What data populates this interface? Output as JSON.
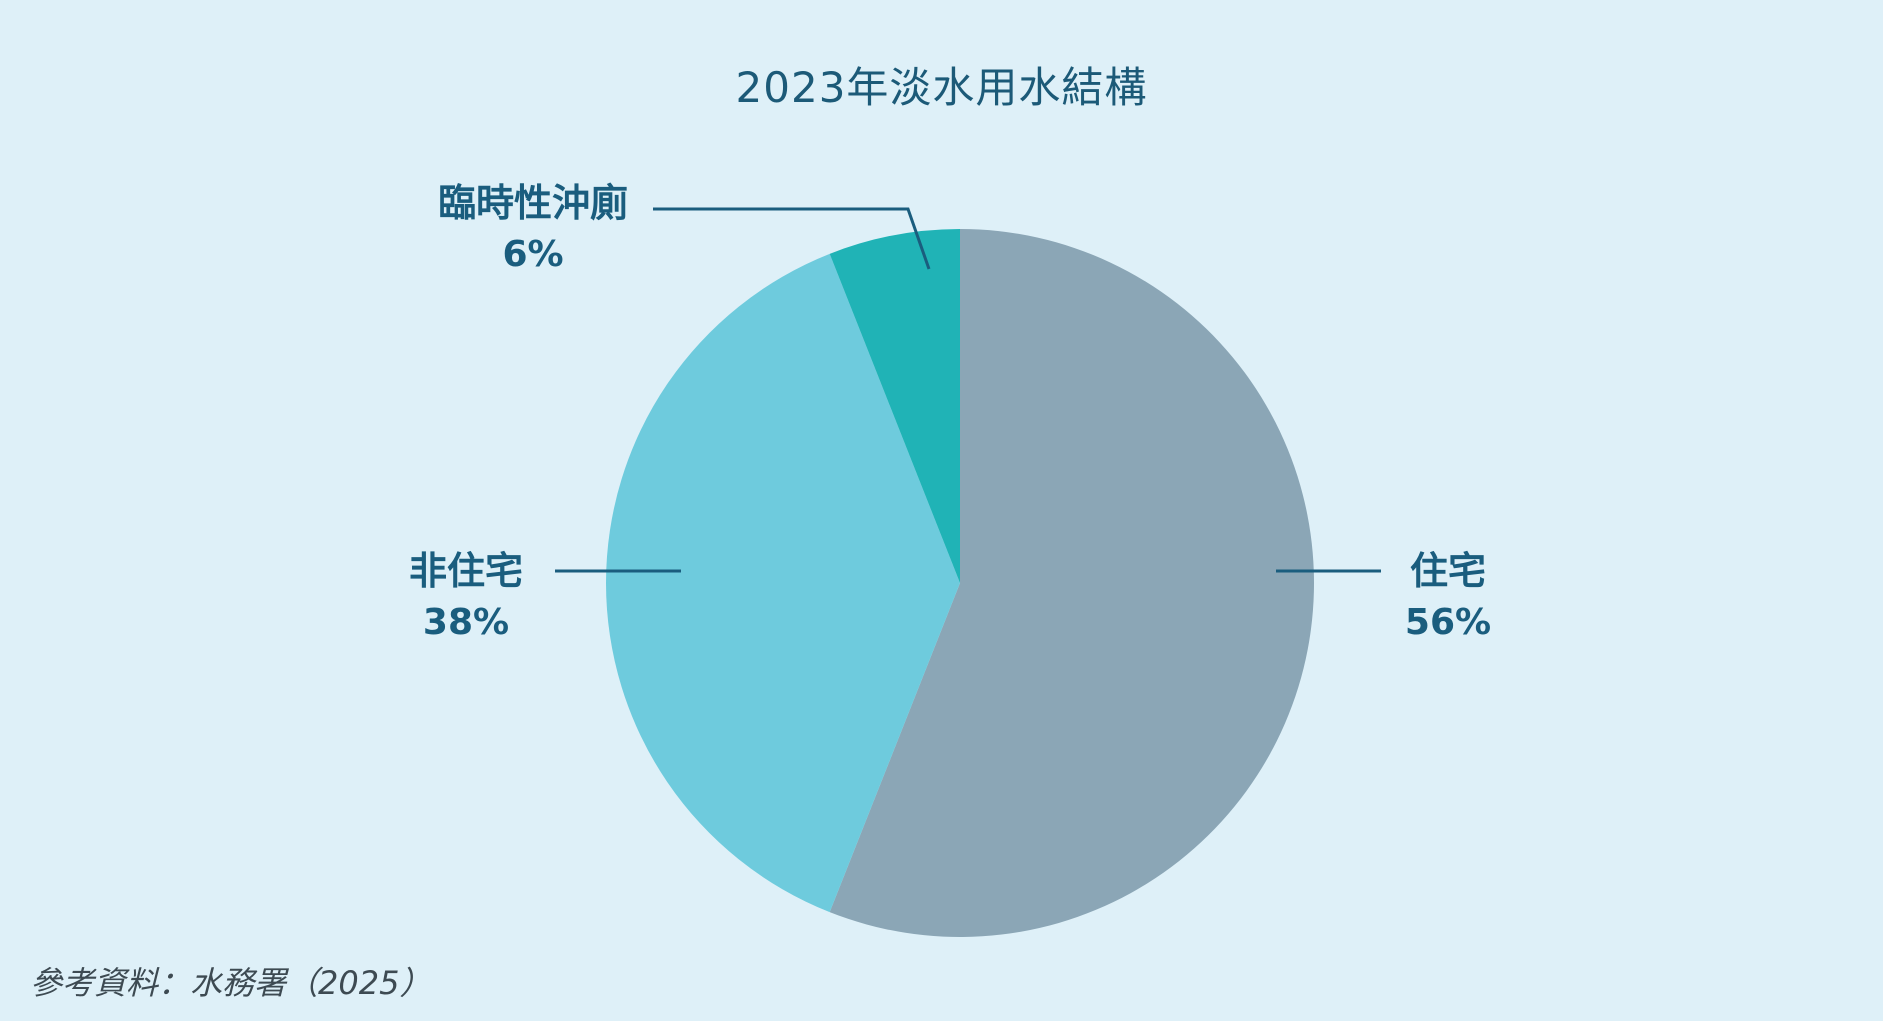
{
  "chart_data": {
    "type": "pie",
    "title": "2023年淡水用水結構",
    "slices": [
      {
        "label": "住宅",
        "value": 56,
        "value_label": "56%",
        "color": "#8ba6b6"
      },
      {
        "label": "非住宅",
        "value": 38,
        "value_label": "38%",
        "color": "#6ecbdd"
      },
      {
        "label": "臨時性沖廁",
        "value": 6,
        "value_label": "6%",
        "color": "#20b3b6"
      }
    ],
    "start_angle": "12 o'clock",
    "direction": "clockwise",
    "legend": "none"
  },
  "source": "參考資料：水務署（2025）"
}
